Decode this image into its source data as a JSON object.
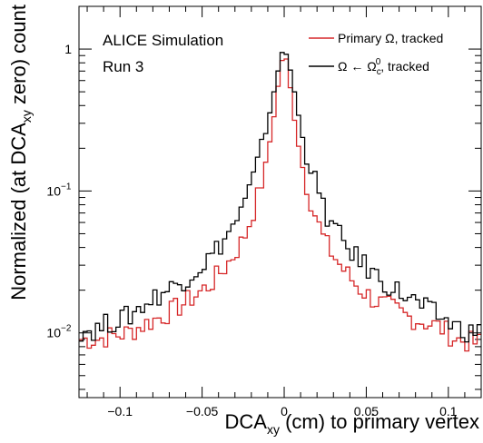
{
  "chart_data": {
    "type": "line",
    "style": "step-histogram",
    "ylog": true,
    "xlim": [
      -0.125,
      0.12
    ],
    "ylim": [
      0.0035,
      2.0
    ],
    "xlabel": "DCA_xy (cm) to primary vertex",
    "ylabel": "Normalized (at DCA_xy zero) count",
    "xticks": [
      -0.1,
      -0.05,
      0,
      0.05,
      0.1
    ],
    "xtick_labels": [
      "−0.1",
      "−0.05",
      "0",
      "0.05",
      "0.1"
    ],
    "yticks": [
      0.01,
      0.1,
      1
    ],
    "ytick_labels": [
      {
        "base": "10",
        "exp": "−2"
      },
      {
        "base": "10",
        "exp": "−1"
      },
      {
        "base": "1",
        "exp": ""
      }
    ],
    "annotations": [
      "ALICE Simulation",
      "Run 3"
    ],
    "legend_position": "top-right",
    "bin_width": 0.0025,
    "series": [
      {
        "name": "Primary Ω, tracked",
        "color": "#d62728",
        "x": [
          -0.115,
          -0.105,
          -0.095,
          -0.085,
          -0.075,
          -0.065,
          -0.055,
          -0.045,
          -0.035,
          -0.025,
          -0.02,
          -0.015,
          -0.01,
          -0.005,
          -0.0025,
          0.0,
          0.0025,
          0.005,
          0.01,
          0.015,
          0.02,
          0.025,
          0.035,
          0.045,
          0.055,
          0.065,
          0.075,
          0.085,
          0.095,
          0.105,
          0.115
        ],
        "values": [
          0.009,
          0.0095,
          0.01,
          0.0115,
          0.013,
          0.015,
          0.018,
          0.022,
          0.03,
          0.045,
          0.065,
          0.1,
          0.18,
          0.42,
          0.7,
          1.0,
          0.7,
          0.4,
          0.17,
          0.095,
          0.062,
          0.043,
          0.029,
          0.021,
          0.017,
          0.015,
          0.013,
          0.012,
          0.011,
          0.009,
          0.0085
        ]
      },
      {
        "name": "Ω ← Ωc0, tracked",
        "color": "#000000",
        "x": [
          -0.115,
          -0.105,
          -0.095,
          -0.085,
          -0.075,
          -0.065,
          -0.055,
          -0.045,
          -0.035,
          -0.025,
          -0.02,
          -0.015,
          -0.01,
          -0.005,
          -0.0025,
          0.0,
          0.0025,
          0.005,
          0.01,
          0.015,
          0.02,
          0.025,
          0.035,
          0.045,
          0.055,
          0.065,
          0.075,
          0.085,
          0.095,
          0.105,
          0.115
        ],
        "values": [
          0.0105,
          0.012,
          0.013,
          0.016,
          0.019,
          0.022,
          0.027,
          0.034,
          0.048,
          0.075,
          0.11,
          0.17,
          0.3,
          0.6,
          0.85,
          1.0,
          0.85,
          0.6,
          0.28,
          0.16,
          0.105,
          0.07,
          0.045,
          0.033,
          0.026,
          0.021,
          0.018,
          0.015,
          0.013,
          0.011,
          0.01
        ]
      }
    ]
  }
}
